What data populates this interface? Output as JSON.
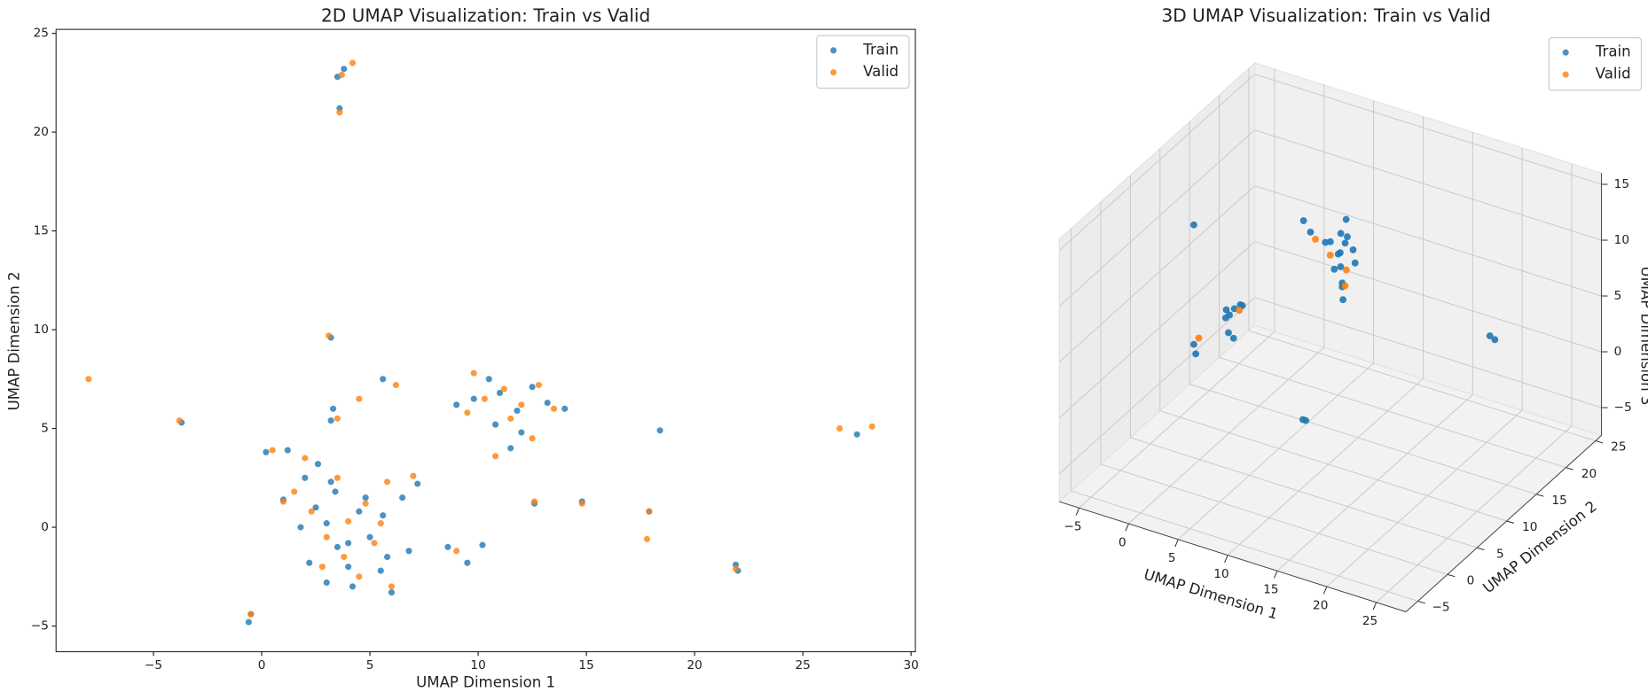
{
  "chart_data": [
    {
      "type": "scatter",
      "title": "2D UMAP Visualization: Train vs Valid",
      "x_label": "UMAP Dimension 1",
      "y_label": "UMAP Dimension 2",
      "xlim": [
        -9.5,
        30.2
      ],
      "ylim": [
        -6.3,
        25.2
      ],
      "xticks": [
        {
          "value": -5,
          "label": "−5"
        },
        0,
        5,
        10,
        15,
        20,
        25,
        30
      ],
      "yticks": [
        {
          "value": -5,
          "label": "−5"
        },
        0,
        5,
        10,
        15,
        20,
        25
      ],
      "grid": false,
      "legend": "upper right",
      "series": [
        {
          "name": "Train",
          "color": "#1f77b4",
          "x": [
            3.8,
            3.5,
            3.6,
            3.2,
            -0.6,
            -0.5,
            1.2,
            2.0,
            2.5,
            3.0,
            3.5,
            4.0,
            4.5,
            5.0,
            5.5,
            6.0,
            6.5,
            7.2,
            2.2,
            3.0,
            4.2,
            5.8,
            6.8,
            1.8,
            2.6,
            3.4,
            4.8,
            5.6,
            4.0,
            3.2,
            8.6,
            9.5,
            10.2,
            9.0,
            10.5,
            11.0,
            11.8,
            12.5,
            13.2,
            10.8,
            12.0,
            11.5,
            9.8,
            14.0,
            18.4,
            21.9,
            22.0,
            27.5,
            -3.7,
            3.2,
            5.6,
            12.6,
            14.8,
            17.9,
            0.2,
            1.0,
            3.3
          ],
          "values": [
            23.2,
            22.8,
            21.2,
            9.6,
            -4.8,
            -4.4,
            3.9,
            2.5,
            1.0,
            0.2,
            -1.0,
            -2.0,
            0.8,
            -0.5,
            -2.2,
            -3.3,
            1.5,
            2.2,
            -1.8,
            -2.8,
            -3.0,
            -1.5,
            -1.2,
            0.0,
            3.2,
            1.8,
            1.5,
            0.6,
            -0.8,
            2.3,
            -1.0,
            -1.8,
            -0.9,
            6.2,
            7.5,
            6.8,
            5.9,
            7.1,
            6.3,
            5.2,
            4.8,
            4.0,
            6.5,
            6.0,
            4.9,
            -1.9,
            -2.2,
            4.7,
            5.3,
            5.4,
            7.5,
            1.2,
            1.3,
            0.8,
            3.8,
            1.4,
            6.0
          ]
        },
        {
          "name": "Valid",
          "color": "#ff7f0e",
          "x": [
            3.7,
            4.2,
            3.6,
            -0.5,
            -8.0,
            -3.8,
            3.1,
            1.5,
            2.3,
            3.0,
            3.8,
            4.5,
            5.2,
            6.0,
            2.0,
            3.5,
            4.8,
            5.5,
            7.0,
            2.8,
            4.0,
            1.0,
            0.5,
            9.0,
            9.8,
            10.3,
            11.2,
            12.0,
            12.8,
            13.5,
            9.5,
            11.5,
            12.5,
            10.8,
            14.8,
            17.8,
            17.9,
            21.9,
            26.7,
            28.2,
            12.6,
            4.5,
            3.5,
            6.2,
            5.8
          ],
          "values": [
            22.9,
            23.5,
            21.0,
            -4.4,
            7.5,
            5.4,
            9.7,
            1.8,
            0.8,
            -0.5,
            -1.5,
            -2.5,
            -0.8,
            -3.0,
            3.5,
            2.5,
            1.2,
            0.2,
            2.6,
            -2.0,
            0.3,
            1.3,
            3.9,
            -1.2,
            7.8,
            6.5,
            7.0,
            6.2,
            7.2,
            6.0,
            5.8,
            5.5,
            4.5,
            3.6,
            1.2,
            -0.6,
            0.8,
            -2.1,
            5.0,
            5.1,
            1.3,
            6.5,
            5.5,
            7.2,
            2.3
          ]
        }
      ]
    },
    {
      "type": "scatter3d",
      "title": "3D UMAP Visualization: Train vs Valid",
      "x_label": "UMAP Dimension 1",
      "y_label": "UMAP Dimension 2",
      "z_label": "UMAP Dimension 3",
      "xlim": [
        -7,
        28
      ],
      "ylim": [
        -7,
        26
      ],
      "zlim": [
        -7.5,
        16
      ],
      "xticks": [
        {
          "value": -5,
          "label": "−5"
        },
        0,
        5,
        10,
        15,
        20,
        25
      ],
      "yticks": [
        {
          "value": -5,
          "label": "−5"
        },
        0,
        5,
        10,
        15,
        20,
        25
      ],
      "zticks": [
        {
          "value": -5,
          "label": "−5"
        },
        0,
        5,
        10,
        15
      ],
      "grid": true,
      "legend": "upper right",
      "series": [
        {
          "name": "Train",
          "color": "#1f77b4",
          "x": [
            10,
            10.5,
            9.5,
            10,
            11,
            9,
            10.3,
            10.8,
            10.2,
            10.4,
            9.8,
            11.5,
            8.5,
            7,
            6,
            10,
            10.6,
            3,
            3.5,
            2.5,
            3.2,
            3.8,
            2.8,
            3.3,
            4.3,
            0,
            0,
            0.2,
            14,
            14.3,
            28,
            27.5
          ],
          "y": [
            12,
            12,
            12.5,
            11,
            12.5,
            12,
            11.6,
            11,
            12,
            11.8,
            12.4,
            12,
            12,
            12,
            12.5,
            13,
            12.2,
            5,
            5,
            5.2,
            4.5,
            5.5,
            4.8,
            5.2,
            5,
            4,
            4,
            4,
            -1,
            -1,
            8,
            8
          ],
          "z": [
            10.5,
            11.5,
            10,
            9.5,
            10.8,
            11.2,
            12.5,
            8.5,
            7.5,
            6.5,
            9,
            10,
            11,
            11.5,
            12,
            13,
            12,
            6.3,
            7,
            5.8,
            5,
            7.2,
            6.8,
            4.2,
            7.5,
            14,
            3.3,
            2.5,
            2.9,
            2.9,
            9.7,
            9.9
          ]
        },
        {
          "name": "Valid",
          "color": "#ff7f0e",
          "x": [
            9,
            10.5,
            4,
            7.5,
            0.5,
            10.8
          ],
          "y": [
            12,
            12.2,
            5,
            12,
            4,
            11.5
          ],
          "z": [
            10,
            9,
            7,
            11,
            4,
            8
          ]
        }
      ]
    }
  ]
}
